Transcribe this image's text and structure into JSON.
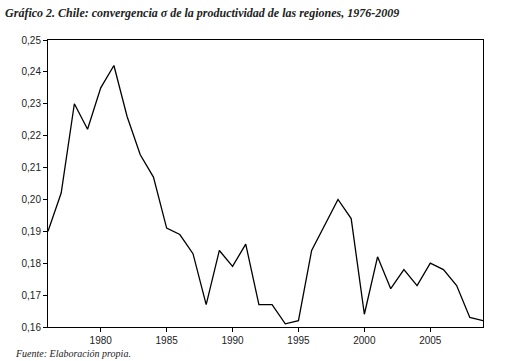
{
  "chart_data": {
    "type": "line",
    "title": "Gráfico 2. Chile: convergencia σ de la productividad de las regiones, 1976-2009",
    "source": "Fuente: Elaboración propia.",
    "x": [
      1976,
      1977,
      1978,
      1979,
      1980,
      1981,
      1982,
      1983,
      1984,
      1985,
      1986,
      1987,
      1988,
      1989,
      1990,
      1991,
      1992,
      1993,
      1994,
      1995,
      1996,
      1997,
      1998,
      1999,
      2000,
      2001,
      2002,
      2003,
      2004,
      2005,
      2006,
      2007,
      2008,
      2009
    ],
    "values": [
      0.19,
      0.202,
      0.23,
      0.222,
      0.235,
      0.242,
      0.226,
      0.214,
      0.207,
      0.191,
      0.189,
      0.183,
      0.167,
      0.184,
      0.179,
      0.186,
      0.167,
      0.167,
      0.161,
      0.162,
      0.184,
      0.192,
      0.2,
      0.194,
      0.164,
      0.182,
      0.172,
      0.178,
      0.173,
      0.18,
      0.178,
      0.173,
      0.163,
      0.162
    ],
    "color": "#000000",
    "xlim": [
      1976,
      2009
    ],
    "xticks": [
      1980,
      1985,
      1990,
      1995,
      2000,
      2005
    ],
    "ylim": [
      0.16,
      0.25
    ],
    "yticks": [
      {
        "value": 0.16,
        "label": "0,16"
      },
      {
        "value": 0.17,
        "label": "0,17"
      },
      {
        "value": 0.18,
        "label": "0,18"
      },
      {
        "value": 0.19,
        "label": "0,19"
      },
      {
        "value": 0.2,
        "label": "0,20"
      },
      {
        "value": 0.21,
        "label": "0,21"
      },
      {
        "value": 0.22,
        "label": "0,22"
      },
      {
        "value": 0.23,
        "label": "0,23"
      },
      {
        "value": 0.24,
        "label": "0,24"
      },
      {
        "value": 0.25,
        "label": "0,25"
      }
    ],
    "grid": false
  }
}
